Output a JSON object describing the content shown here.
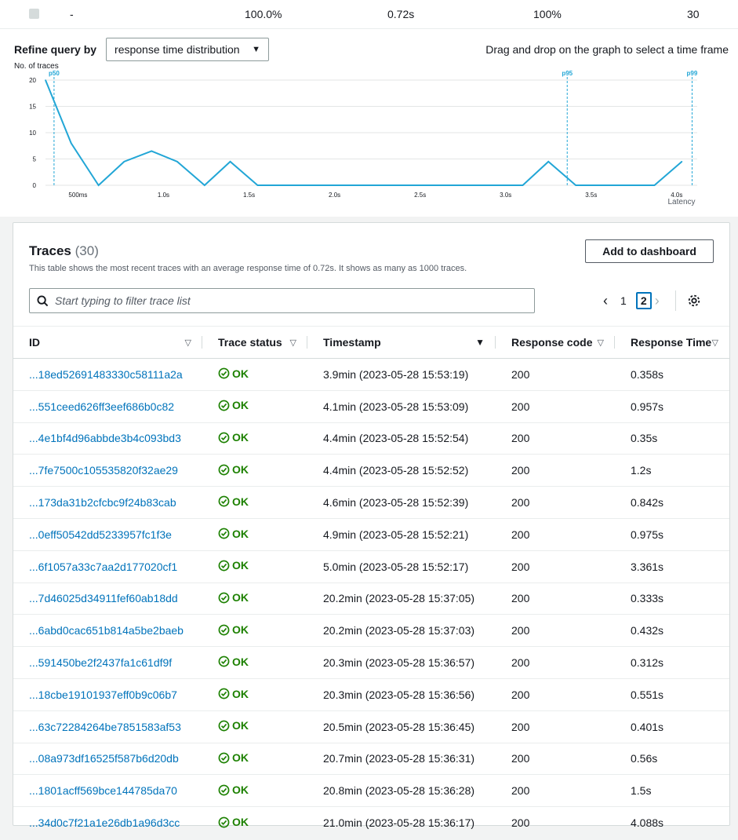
{
  "summary_row": {
    "id": "-",
    "pct_a": "100.0%",
    "avg": "0.72s",
    "pct_b": "100%",
    "count": "30"
  },
  "refine": {
    "label": "Refine query by",
    "selected": "response time distribution",
    "hint": "Drag and drop on the graph to select a time frame"
  },
  "chart_data": {
    "type": "line",
    "ylabel": "No. of traces",
    "xlabel": "Latency",
    "y_ticks": [
      0,
      5,
      10,
      15,
      20
    ],
    "x_ticks": [
      {
        "label": "500ms",
        "v": 0.5
      },
      {
        "label": "1.0s",
        "v": 1.0
      },
      {
        "label": "1.5s",
        "v": 1.5
      },
      {
        "label": "2.0s",
        "v": 2.0
      },
      {
        "label": "2.5s",
        "v": 2.5
      },
      {
        "label": "3.0s",
        "v": 3.0
      },
      {
        "label": "3.5s",
        "v": 3.5
      },
      {
        "label": "4.0s",
        "v": 4.0
      }
    ],
    "xlim": [
      0.31,
      4.12
    ],
    "ylim": [
      0,
      20
    ],
    "x": [
      0.31,
      0.46,
      0.62,
      0.77,
      0.93,
      1.08,
      1.24,
      1.39,
      1.55,
      1.7,
      1.86,
      2.01,
      2.17,
      2.32,
      2.48,
      2.63,
      2.79,
      2.94,
      3.1,
      3.25,
      3.41,
      3.56,
      3.72,
      3.87,
      4.03
    ],
    "values": [
      20,
      8,
      0,
      4.5,
      6.5,
      4.5,
      0,
      4.5,
      0,
      0,
      0,
      0,
      0,
      0,
      0,
      0,
      0,
      0,
      0,
      4.5,
      0,
      0,
      0,
      0,
      4.5
    ],
    "markers": [
      {
        "label": "p50",
        "v": 0.36
      },
      {
        "label": "p95",
        "v": 3.36
      },
      {
        "label": "p99",
        "v": 4.09
      }
    ]
  },
  "traces": {
    "title": "Traces",
    "count": "(30)",
    "description": "This table shows the most recent traces with an average response time of 0.72s. It shows as many as 1000 traces.",
    "add_button": "Add to dashboard",
    "filter_placeholder": "Start typing to filter trace list",
    "pages": [
      "1",
      "2"
    ],
    "current_page": "2",
    "columns": [
      "ID",
      "Trace status",
      "Timestamp",
      "Response code",
      "Response Time"
    ],
    "rows": [
      {
        "id": "...18ed52691483330c58111a2a",
        "status": "OK",
        "ts": "3.9min (2023-05-28 15:53:19)",
        "code": "200",
        "time": "0.358s"
      },
      {
        "id": "...551ceed626ff3eef686b0c82",
        "status": "OK",
        "ts": "4.1min (2023-05-28 15:53:09)",
        "code": "200",
        "time": "0.957s"
      },
      {
        "id": "...4e1bf4d96abbde3b4c093bd3",
        "status": "OK",
        "ts": "4.4min (2023-05-28 15:52:54)",
        "code": "200",
        "time": "0.35s"
      },
      {
        "id": "...7fe7500c105535820f32ae29",
        "status": "OK",
        "ts": "4.4min (2023-05-28 15:52:52)",
        "code": "200",
        "time": "1.2s"
      },
      {
        "id": "...173da31b2cfcbc9f24b83cab",
        "status": "OK",
        "ts": "4.6min (2023-05-28 15:52:39)",
        "code": "200",
        "time": "0.842s"
      },
      {
        "id": "...0eff50542dd5233957fc1f3e",
        "status": "OK",
        "ts": "4.9min (2023-05-28 15:52:21)",
        "code": "200",
        "time": "0.975s"
      },
      {
        "id": "...6f1057a33c7aa2d177020cf1",
        "status": "OK",
        "ts": "5.0min (2023-05-28 15:52:17)",
        "code": "200",
        "time": "3.361s"
      },
      {
        "id": "...7d46025d34911fef60ab18dd",
        "status": "OK",
        "ts": "20.2min (2023-05-28 15:37:05)",
        "code": "200",
        "time": "0.333s"
      },
      {
        "id": "...6abd0cac651b814a5be2baeb",
        "status": "OK",
        "ts": "20.2min (2023-05-28 15:37:03)",
        "code": "200",
        "time": "0.432s"
      },
      {
        "id": "...591450be2f2437fa1c61df9f",
        "status": "OK",
        "ts": "20.3min (2023-05-28 15:36:57)",
        "code": "200",
        "time": "0.312s"
      },
      {
        "id": "...18cbe19101937eff0b9c06b7",
        "status": "OK",
        "ts": "20.3min (2023-05-28 15:36:56)",
        "code": "200",
        "time": "0.551s"
      },
      {
        "id": "...63c72284264be7851583af53",
        "status": "OK",
        "ts": "20.5min (2023-05-28 15:36:45)",
        "code": "200",
        "time": "0.401s"
      },
      {
        "id": "...08a973df16525f587b6d20db",
        "status": "OK",
        "ts": "20.7min (2023-05-28 15:36:31)",
        "code": "200",
        "time": "0.56s"
      },
      {
        "id": "...1801acff569bce144785da70",
        "status": "OK",
        "ts": "20.8min (2023-05-28 15:36:28)",
        "code": "200",
        "time": "1.5s"
      },
      {
        "id": "...34d0c7f21a1e26db1a96d3cc",
        "status": "OK",
        "ts": "21.0min (2023-05-28 15:36:17)",
        "code": "200",
        "time": "4.088s"
      }
    ]
  },
  "colors": {
    "accent": "#0073bb",
    "chart_line": "#22a6d6",
    "ok": "#1d8102"
  },
  "icons": {
    "search": "search-icon",
    "status": "check-circle-icon",
    "settings": "gear-icon"
  }
}
